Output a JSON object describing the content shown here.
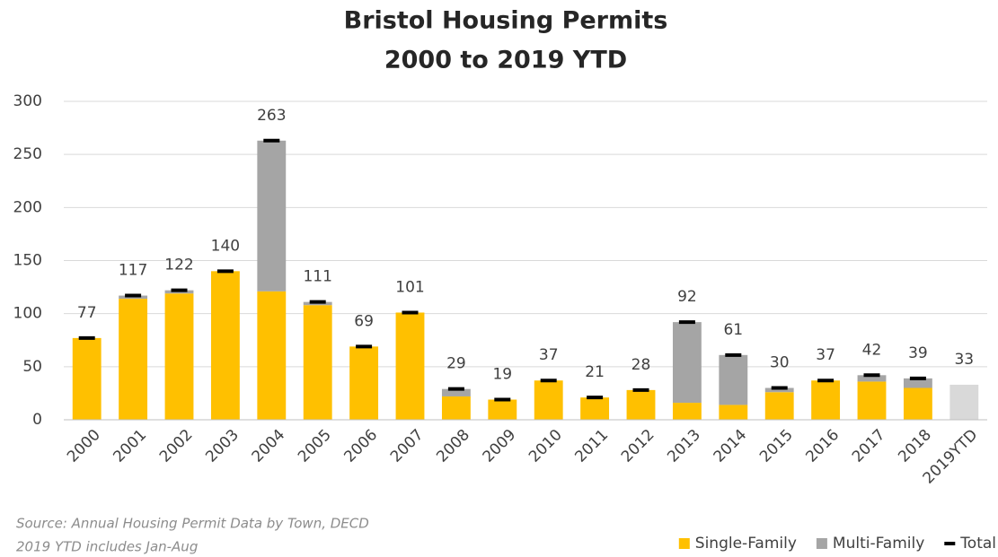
{
  "chart_data": {
    "type": "stacked_bar",
    "title": "Bristol Housing Permits",
    "subtitle": "2000 to 2019 YTD",
    "categories": [
      "2000",
      "2001",
      "2002",
      "2003",
      "2004",
      "2005",
      "2006",
      "2007",
      "2008",
      "2009",
      "2010",
      "2011",
      "2012",
      "2013",
      "2014",
      "2015",
      "2016",
      "2017",
      "2018",
      "2019YTD"
    ],
    "series": [
      {
        "name": "Single-Family",
        "color": "#ffc000",
        "values": [
          77,
          114,
          119,
          140,
          121,
          108,
          69,
          101,
          22,
          19,
          37,
          21,
          28,
          16,
          14,
          26,
          37,
          36,
          30,
          null
        ]
      },
      {
        "name": "Multi-Family",
        "color": "#a5a5a5",
        "values": [
          0,
          3,
          3,
          0,
          142,
          3,
          0,
          0,
          7,
          0,
          0,
          0,
          0,
          76,
          47,
          4,
          0,
          6,
          9,
          null
        ]
      },
      {
        "name": "Total",
        "color": "#000000",
        "values": [
          77,
          117,
          122,
          140,
          263,
          111,
          69,
          101,
          29,
          19,
          37,
          21,
          28,
          92,
          61,
          30,
          37,
          42,
          39,
          33
        ]
      }
    ],
    "total_bar_color": "#d9d9d9",
    "ylim": [
      0,
      300
    ],
    "yticks": [
      0,
      50,
      100,
      150,
      200,
      250,
      300
    ],
    "grid": true,
    "legend": "bottom-right",
    "notes": [
      "Source: Annual Housing Permit Data by Town, DECD",
      "2019 YTD includes Jan-Aug"
    ]
  }
}
